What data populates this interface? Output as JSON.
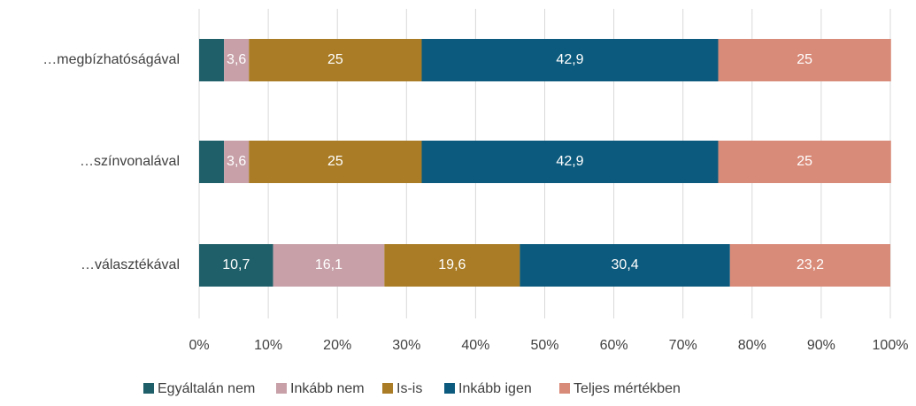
{
  "chart_data": {
    "type": "stacked_barh",
    "categories": [
      "…megbízhatóságával",
      "…színvonalával",
      "…választékával"
    ],
    "series": [
      {
        "name": "Egyáltalán nem",
        "color": "#1e5f69",
        "values": [
          3.6,
          3.6,
          10.7
        ],
        "value_labels": [
          null,
          null,
          "10,7"
        ]
      },
      {
        "name": "Inkább nem",
        "color": "#c7a0a8",
        "values": [
          3.6,
          3.6,
          16.1
        ],
        "value_labels": [
          "3,6",
          "3,6",
          "16,1"
        ]
      },
      {
        "name": "Is-is",
        "color": "#a97c25",
        "values": [
          25,
          25,
          19.6
        ],
        "value_labels": [
          "25",
          "25",
          "19,6"
        ]
      },
      {
        "name": "Inkább igen",
        "color": "#0c5a7d",
        "values": [
          42.9,
          42.9,
          30.4
        ],
        "value_labels": [
          "42,9",
          "42,9",
          "30,4"
        ]
      },
      {
        "name": "Teljes mértékben",
        "color": "#d98b79",
        "values": [
          25,
          25,
          23.2
        ],
        "value_labels": [
          "25",
          "25",
          "23,2"
        ]
      }
    ],
    "xlim": [
      0,
      100
    ],
    "xticks": [
      {
        "value": 0,
        "label": "0%"
      },
      {
        "value": 10,
        "label": "10%"
      },
      {
        "value": 20,
        "label": "20%"
      },
      {
        "value": 30,
        "label": "30%"
      },
      {
        "value": 40,
        "label": "40%"
      },
      {
        "value": 50,
        "label": "50%"
      },
      {
        "value": 60,
        "label": "60%"
      },
      {
        "value": 70,
        "label": "70%"
      },
      {
        "value": 80,
        "label": "80%"
      },
      {
        "value": 90,
        "label": "90%"
      },
      {
        "value": 100,
        "label": "100%"
      }
    ],
    "grid": true,
    "legend": "bottom"
  }
}
